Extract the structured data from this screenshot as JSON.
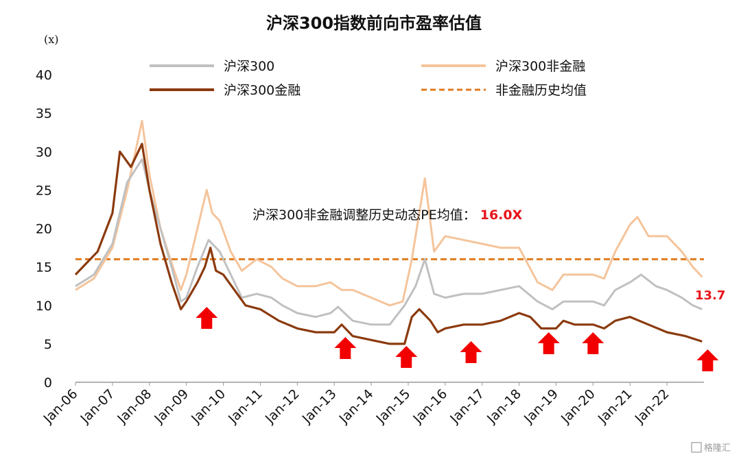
{
  "chart_data": {
    "type": "line",
    "title": "沪深300指数前向市盈率估值",
    "y_unit": "(x)",
    "ylim": [
      0,
      40
    ],
    "y_ticks": [
      "0",
      "5",
      "10",
      "15",
      "20",
      "25",
      "30",
      "35",
      "40"
    ],
    "x_ticks": [
      "Jan-06",
      "Jan-07",
      "Jan-08",
      "Jan-09",
      "Jan-10",
      "Jan-11",
      "Jan-12",
      "Jan-13",
      "Jan-14",
      "Jan-15",
      "Jan-16",
      "Jan-17",
      "Jan-18",
      "Jan-19",
      "Jan-20",
      "Jan-21",
      "Jan-22"
    ],
    "grid": false,
    "legend_placement": "top",
    "series": [
      {
        "name": "沪深300",
        "color": "#c0c0c0",
        "x": [
          2006.0,
          2006.5,
          2007.0,
          2007.4,
          2007.8,
          2008.0,
          2008.3,
          2008.6,
          2008.85,
          2009.0,
          2009.3,
          2009.6,
          2009.9,
          2010.2,
          2010.5,
          2010.9,
          2011.3,
          2011.6,
          2012.0,
          2012.5,
          2012.9,
          2013.1,
          2013.5,
          2014.0,
          2014.5,
          2014.9,
          2015.2,
          2015.45,
          2015.7,
          2016.0,
          2016.5,
          2017.0,
          2017.5,
          2018.0,
          2018.5,
          2018.9,
          2019.2,
          2019.5,
          2020.0,
          2020.3,
          2020.6,
          2021.0,
          2021.3,
          2021.7,
          2022.0,
          2022.4,
          2022.7,
          2022.95
        ],
        "y": [
          12.5,
          14.0,
          18.0,
          26.0,
          29.0,
          25.0,
          20.0,
          15.0,
          10.5,
          11.0,
          15.0,
          18.5,
          17.0,
          14.0,
          11.0,
          11.5,
          11.0,
          10.0,
          9.0,
          8.5,
          9.0,
          9.8,
          8.0,
          7.5,
          7.5,
          10.0,
          12.5,
          16.0,
          11.5,
          11.0,
          11.5,
          11.5,
          12.0,
          12.5,
          10.5,
          9.5,
          10.5,
          10.5,
          10.5,
          10.0,
          12.0,
          13.0,
          14.0,
          12.5,
          12.0,
          11.0,
          10.0,
          9.5
        ]
      },
      {
        "name": "沪深300非金融",
        "color": "#f5c49b",
        "x": [
          2006.0,
          2006.5,
          2007.0,
          2007.4,
          2007.8,
          2008.0,
          2008.3,
          2008.6,
          2008.85,
          2009.0,
          2009.3,
          2009.55,
          2009.7,
          2009.9,
          2010.2,
          2010.5,
          2010.9,
          2011.3,
          2011.6,
          2012.0,
          2012.5,
          2012.9,
          2013.2,
          2013.5,
          2014.0,
          2014.5,
          2014.85,
          2015.1,
          2015.45,
          2015.7,
          2016.0,
          2016.5,
          2017.0,
          2017.5,
          2018.0,
          2018.5,
          2018.9,
          2019.2,
          2019.5,
          2020.0,
          2020.3,
          2020.6,
          2021.0,
          2021.2,
          2021.5,
          2022.0,
          2022.4,
          2022.7,
          2022.95
        ],
        "y": [
          12.0,
          13.5,
          17.5,
          25.0,
          34.0,
          27.0,
          20.0,
          15.5,
          12.0,
          14.0,
          20.0,
          25.0,
          22.0,
          21.0,
          17.0,
          14.5,
          16.0,
          15.0,
          13.5,
          12.5,
          12.5,
          13.0,
          12.0,
          12.0,
          11.0,
          10.0,
          10.5,
          16.0,
          26.5,
          17.0,
          19.0,
          18.5,
          18.0,
          17.5,
          17.5,
          13.0,
          12.0,
          14.0,
          14.0,
          14.0,
          13.5,
          17.0,
          20.5,
          21.5,
          19.0,
          19.0,
          17.0,
          15.0,
          13.7
        ]
      },
      {
        "name": "沪深300金融",
        "color": "#8b3a0e",
        "x": [
          2006.0,
          2006.3,
          2006.6,
          2007.0,
          2007.2,
          2007.5,
          2007.8,
          2008.0,
          2008.3,
          2008.6,
          2008.85,
          2009.0,
          2009.3,
          2009.5,
          2009.65,
          2009.8,
          2010.0,
          2010.3,
          2010.6,
          2011.0,
          2011.5,
          2012.0,
          2012.5,
          2013.0,
          2013.2,
          2013.5,
          2014.0,
          2014.5,
          2014.9,
          2015.1,
          2015.3,
          2015.6,
          2015.8,
          2016.0,
          2016.5,
          2017.0,
          2017.5,
          2018.0,
          2018.3,
          2018.6,
          2019.0,
          2019.2,
          2019.5,
          2020.0,
          2020.3,
          2020.6,
          2021.0,
          2021.5,
          2022.0,
          2022.5,
          2022.95
        ],
        "y": [
          14.0,
          15.5,
          17.0,
          22.0,
          30.0,
          28.0,
          31.0,
          25.0,
          18.0,
          13.0,
          9.5,
          10.5,
          13.0,
          15.0,
          17.5,
          14.5,
          14.0,
          12.0,
          10.0,
          9.5,
          8.0,
          7.0,
          6.5,
          6.5,
          7.5,
          6.0,
          5.5,
          5.0,
          5.0,
          8.5,
          9.5,
          8.0,
          6.5,
          7.0,
          7.5,
          7.5,
          8.0,
          9.0,
          8.5,
          7.0,
          7.0,
          8.0,
          7.5,
          7.5,
          7.0,
          8.0,
          8.5,
          7.5,
          6.5,
          6.0,
          5.3
        ]
      }
    ],
    "reference_line": {
      "name": "非金融历史均值",
      "value": 16.0,
      "color": "#e07a1f",
      "style": "dashed"
    },
    "annotation": {
      "text": "沪深300非金融调整历史动态PE均值：",
      "value_text": "16.0X"
    },
    "end_label": {
      "text": "13.7",
      "color": "#e8141b"
    },
    "arrows": {
      "color": "#f20000",
      "x": [
        2009.55,
        2013.3,
        2014.95,
        2016.7,
        2018.8,
        2020.0,
        2023.1
      ]
    }
  },
  "watermark": "格隆汇"
}
